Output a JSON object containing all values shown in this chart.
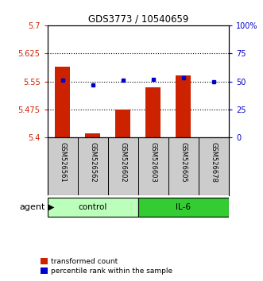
{
  "title": "GDS3773 / 10540659",
  "samples": [
    "GSM526561",
    "GSM526562",
    "GSM526602",
    "GSM526603",
    "GSM526605",
    "GSM526678"
  ],
  "bar_values": [
    5.59,
    5.41,
    5.475,
    5.535,
    5.565,
    5.4
  ],
  "percentile_values": [
    51,
    47,
    51,
    52,
    53,
    50
  ],
  "ylim_left": [
    5.4,
    5.7
  ],
  "ylim_right": [
    0,
    100
  ],
  "yticks_left": [
    5.4,
    5.475,
    5.55,
    5.625,
    5.7
  ],
  "ytick_labels_left": [
    "5.4",
    "5.475",
    "5.55",
    "5.625",
    "5.7"
  ],
  "yticks_right": [
    0,
    25,
    50,
    75,
    100
  ],
  "ytick_labels_right": [
    "0",
    "25",
    "50",
    "75",
    "100%"
  ],
  "hlines": [
    5.475,
    5.55,
    5.625
  ],
  "bar_color": "#cc2200",
  "dot_color": "#0000cc",
  "bar_bottom": 5.4,
  "groups": [
    {
      "label": "control",
      "indices": [
        0,
        1,
        2
      ],
      "color": "#bbffbb"
    },
    {
      "label": "IL-6",
      "indices": [
        3,
        4,
        5
      ],
      "color": "#33cc33"
    }
  ],
  "agent_label": "agent",
  "legend_items": [
    {
      "color": "#cc2200",
      "label": "transformed count"
    },
    {
      "color": "#0000cc",
      "label": "percentile rank within the sample"
    }
  ],
  "left_color": "#cc2200",
  "right_color": "#0000cc",
  "background_color": "#ffffff",
  "plot_bg_color": "#ffffff",
  "sample_box_color": "#cccccc",
  "bar_width": 0.5
}
